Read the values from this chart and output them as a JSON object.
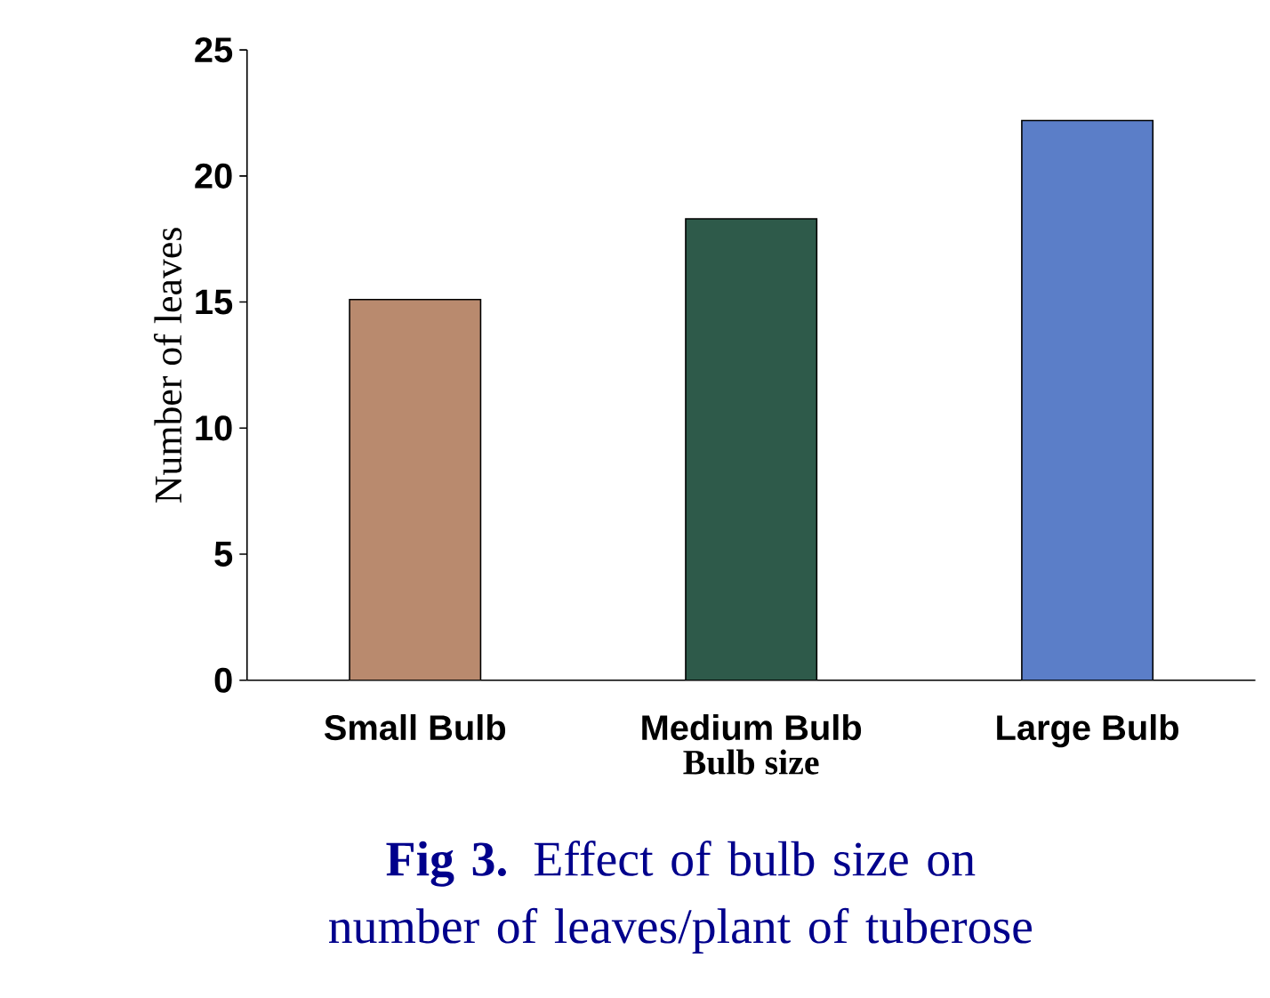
{
  "chart_data": {
    "type": "bar",
    "categories": [
      "Small Bulb",
      "Medium Bulb",
      "Large Bulb"
    ],
    "values": [
      15.1,
      18.3,
      22.2
    ],
    "colors": [
      "#b98a6e",
      "#2e5a4a",
      "#5b7ec8"
    ],
    "xlabel": "Bulb size",
    "ylabel": "Number of leaves",
    "ylim": [
      0,
      25
    ],
    "yticks": [
      0,
      5,
      10,
      15,
      20,
      25
    ],
    "grid": false,
    "annotations": [
      "**Fig 3.** Effect of bulb size on number of leaves/plant of tuberose"
    ]
  }
}
